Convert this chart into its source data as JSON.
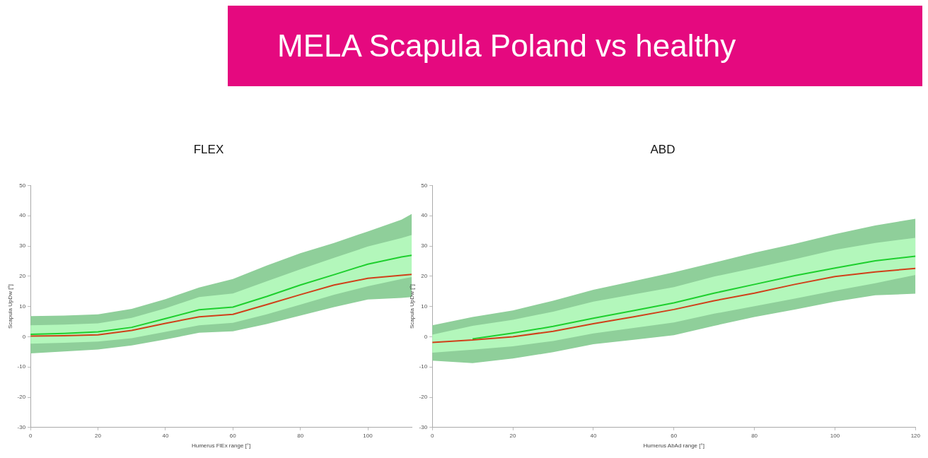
{
  "chart_data": [
    {
      "type": "line",
      "title": "FLEX",
      "xlabel": "Humerus FlEx range [°]",
      "ylabel": "Scapula UpDw [°]",
      "annotations": [
        "MELA Scapula Poland vs healthy"
      ],
      "x": [
        0,
        10,
        20,
        30,
        40,
        50,
        60,
        70,
        80,
        90,
        100,
        110,
        113
      ],
      "xlim": [
        0,
        113
      ],
      "ylim": [
        -30,
        50
      ],
      "xticks": [
        0,
        20,
        40,
        60,
        80,
        100
      ],
      "yticks": [
        -30,
        -20,
        -10,
        0,
        10,
        20,
        30,
        40,
        50
      ],
      "grid": false,
      "legend": false,
      "marker": "none",
      "line_style": "solid",
      "series": [
        {
          "color": "#8fcf9a",
          "values": [
            null,
            null,
            null,
            null,
            null,
            null,
            null,
            null,
            null,
            null,
            null,
            null,
            null
          ],
          "lower": [
            -5.5,
            -4.9,
            -4.2,
            -2.9,
            -0.9,
            1.3,
            1.8,
            4.2,
            7.0,
            9.8,
            12.3,
            12.8,
            13.1
          ],
          "upper": [
            6.8,
            7.0,
            7.4,
            9.2,
            12.4,
            16.3,
            19.1,
            23.5,
            27.6,
            31.0,
            34.8,
            38.7,
            40.6
          ]
        },
        {
          "color": "#b3f7bb",
          "values": [
            null,
            null,
            null,
            null,
            null,
            null,
            null,
            null,
            null,
            null,
            null,
            null,
            null
          ],
          "lower": [
            -2.3,
            -2.0,
            -1.6,
            -0.5,
            1.6,
            3.8,
            4.6,
            7.4,
            10.6,
            13.9,
            16.7,
            19.1,
            19.7
          ],
          "upper": [
            3.8,
            4.0,
            4.4,
            6.2,
            9.4,
            13.1,
            14.3,
            18.3,
            22.3,
            26.1,
            29.8,
            32.6,
            33.6
          ]
        },
        {
          "color": "#1ecf2e",
          "values": [
            0.8,
            1.1,
            1.6,
            3.1,
            6.0,
            8.9,
            9.8,
            13.3,
            17.1,
            20.5,
            24.0,
            26.4,
            26.9
          ]
        },
        {
          "color": "#d0401a",
          "values": [
            0.2,
            0.3,
            0.6,
            2.1,
            4.4,
            6.6,
            7.4,
            10.6,
            13.9,
            17.1,
            19.3,
            20.3,
            20.6
          ]
        }
      ]
    },
    {
      "type": "line",
      "title": "ABD",
      "xlabel": "Humerus AbAd range [°]",
      "ylabel": "Scapula UpDw [°]",
      "x": [
        0,
        10,
        20,
        30,
        40,
        50,
        60,
        70,
        80,
        90,
        100,
        110,
        120
      ],
      "xlim": [
        0,
        120
      ],
      "ylim": [
        -30,
        50
      ],
      "xticks": [
        0,
        20,
        40,
        60,
        80,
        100,
        120
      ],
      "yticks": [
        -30,
        -20,
        -10,
        0,
        10,
        20,
        30,
        40,
        50
      ],
      "grid": false,
      "legend": false,
      "marker": "none",
      "line_style": "solid",
      "series": [
        {
          "color": "#8fcf9a",
          "values": [
            null,
            null,
            null,
            null,
            null,
            null,
            null,
            null,
            null,
            null,
            null,
            null,
            null
          ],
          "lower": [
            -7.9,
            -8.7,
            -7.2,
            -5.1,
            -2.5,
            -1.0,
            0.5,
            3.6,
            6.5,
            9.0,
            11.6,
            13.7,
            14.2
          ],
          "upper": [
            3.8,
            6.5,
            8.7,
            11.9,
            15.5,
            18.4,
            21.3,
            24.5,
            27.8,
            30.7,
            33.9,
            36.8,
            39.0
          ]
        },
        {
          "color": "#b3f7bb",
          "values": [
            null,
            null,
            null,
            null,
            null,
            null,
            null,
            null,
            null,
            null,
            null,
            null,
            null
          ],
          "lower": [
            -5.3,
            -4.3,
            -3.2,
            -1.4,
            1.1,
            2.9,
            4.7,
            7.6,
            10.1,
            12.6,
            15.2,
            17.7,
            20.4
          ],
          "upper": [
            0.7,
            3.6,
            5.6,
            8.3,
            11.6,
            14.0,
            16.4,
            19.9,
            22.7,
            25.6,
            28.7,
            31.0,
            32.7
          ]
        },
        {
          "color": "#1ecf2e",
          "values": [
            null,
            -0.7,
            1.2,
            3.4,
            6.1,
            8.6,
            11.2,
            14.4,
            17.3,
            20.2,
            22.7,
            25.1,
            26.6
          ]
        },
        {
          "color": "#d0401a",
          "values": [
            -1.9,
            -1.1,
            0.0,
            1.8,
            4.3,
            6.6,
            9.0,
            11.9,
            14.4,
            17.3,
            19.9,
            21.4,
            22.6
          ]
        }
      ]
    }
  ]
}
